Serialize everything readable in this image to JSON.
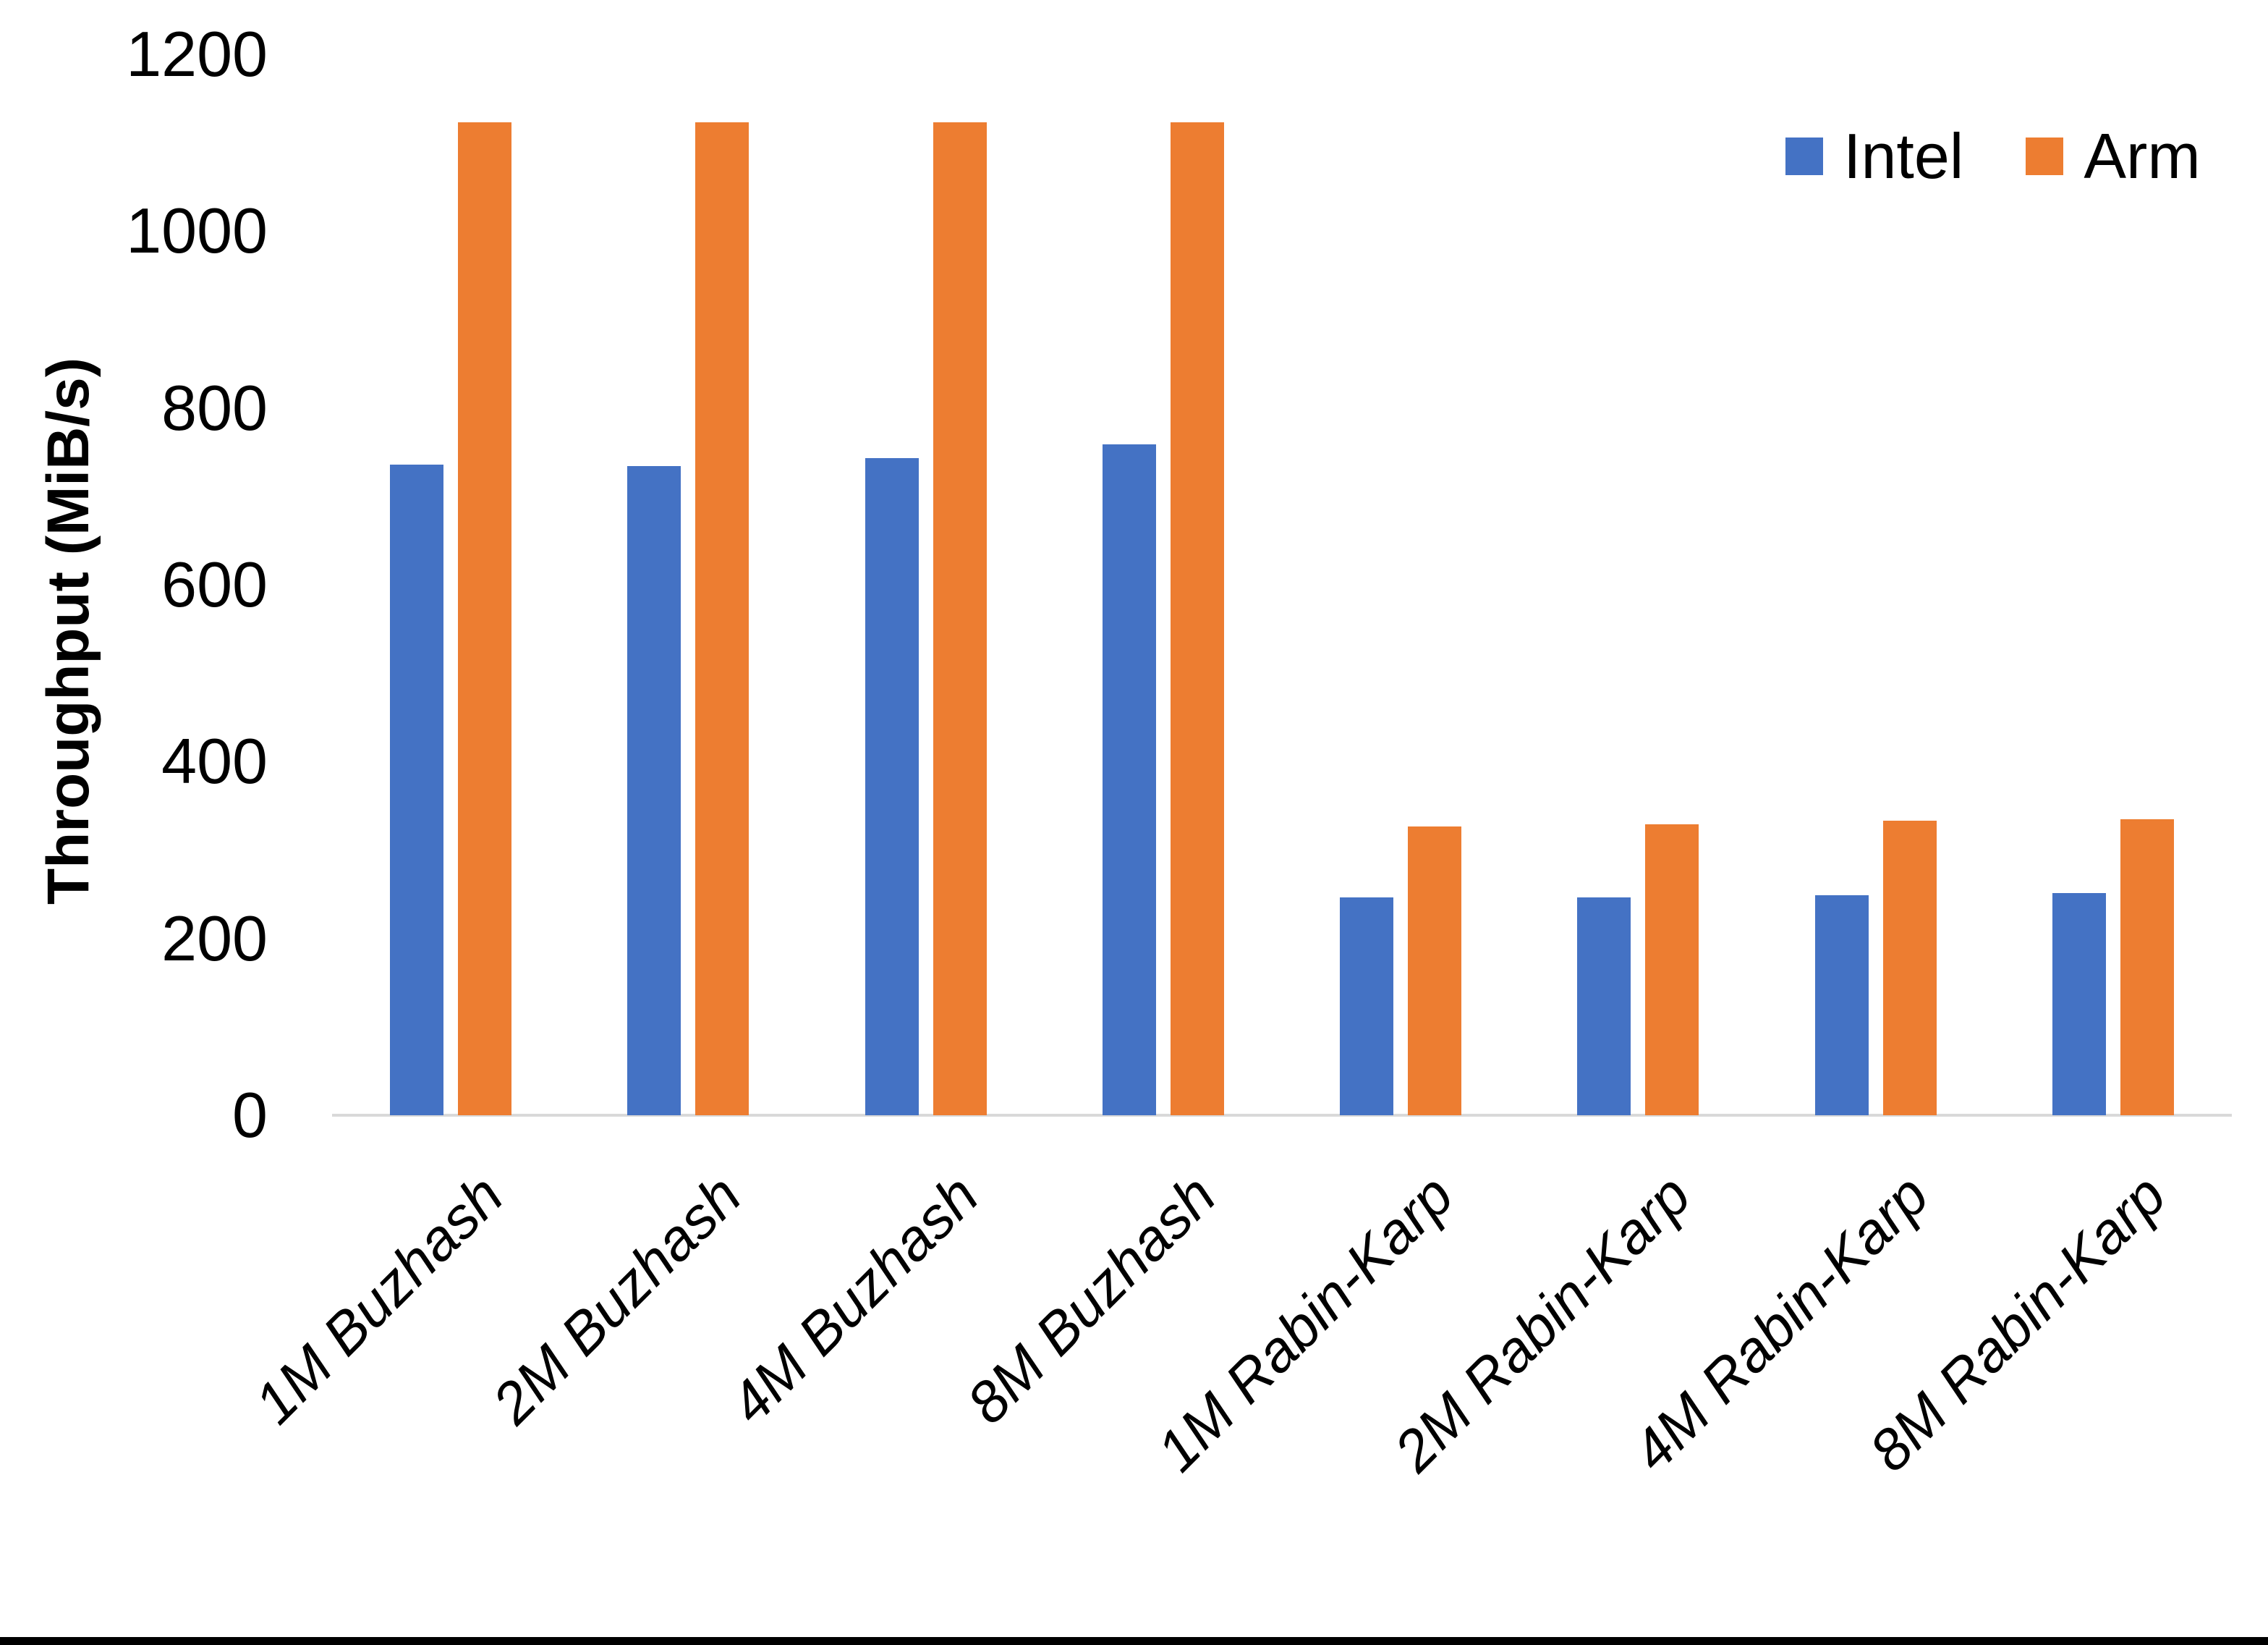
{
  "chart_data": {
    "type": "bar",
    "title": "",
    "xlabel": "",
    "ylabel": "Throughput (MiB/s)",
    "categories": [
      "1M Buzhash",
      "2M Buzhash",
      "4M Buzhash",
      "8M Buzhash",
      "1M Rabin-Karp",
      "2M Rabin-Karp",
      "4M Rabin-Karp",
      "8M Rabin-Karp"
    ],
    "series": [
      {
        "name": "Intel",
        "color": "#4472C4",
        "values": [
          736,
          734,
          743,
          759,
          246,
          246,
          249,
          251
        ]
      },
      {
        "name": "Arm",
        "color": "#ED7D31",
        "values": [
          1123,
          1123,
          1123,
          1123,
          327,
          329,
          333,
          335
        ]
      }
    ],
    "ylim": [
      0,
      1200
    ],
    "ytick_step": 200,
    "yticks": [
      "0",
      "200",
      "400",
      "600",
      "800",
      "1000",
      "1200"
    ],
    "grid": false,
    "legend_position": "top-right",
    "axis_line_color": "#D9D9D9",
    "text_color": "#000000",
    "background_color": "#FFFFFF"
  }
}
